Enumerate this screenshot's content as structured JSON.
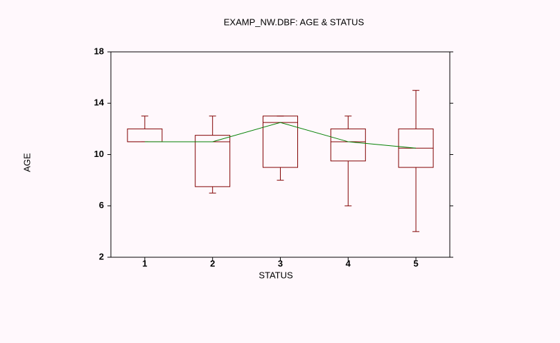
{
  "chart_data": {
    "type": "box",
    "title": "EXAMP_NW.DBF: AGE & STATUS",
    "x_label": "STATUS",
    "y_label": "AGE",
    "categories": [
      "1",
      "2",
      "3",
      "4",
      "5"
    ],
    "boxes": [
      {
        "min": 11,
        "q1": 11,
        "median": 11,
        "q3": 12,
        "max": 13
      },
      {
        "min": 7,
        "q1": 7.5,
        "median": 11,
        "q3": 11.5,
        "max": 13
      },
      {
        "min": 8,
        "q1": 9,
        "median": 12.5,
        "q3": 13,
        "max": 13
      },
      {
        "min": 6,
        "q1": 9.5,
        "median": 11,
        "q3": 12,
        "max": 13
      },
      {
        "min": 4,
        "q1": 9,
        "median": 10.5,
        "q3": 12,
        "max": 15
      }
    ],
    "box_color": "#800000",
    "median_line": {
      "values": [
        11,
        11,
        12.5,
        11,
        10.5
      ],
      "color": "#008000"
    },
    "ylim": [
      2,
      18
    ],
    "yticks": [
      2,
      6,
      10,
      14,
      18
    ]
  }
}
